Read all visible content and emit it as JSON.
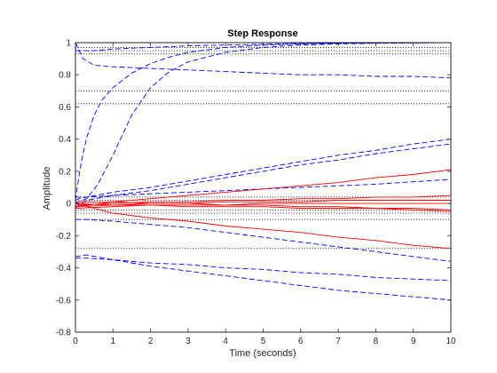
{
  "chart_data": {
    "type": "line",
    "title": "Step Response",
    "xlabel": "Time (seconds)",
    "ylabel": "Amplitude",
    "xlim": [
      0,
      10
    ],
    "ylim": [
      -0.8,
      1
    ],
    "xticks": [
      0,
      1,
      2,
      3,
      4,
      5,
      6,
      7,
      8,
      9,
      10
    ],
    "xtick_labels": [
      "0",
      "1",
      "2",
      "3",
      "4",
      "5",
      "6",
      "7",
      "8",
      "9",
      "10"
    ],
    "yticks": [
      -0.8,
      -0.6,
      -0.4,
      -0.2,
      0,
      0.2,
      0.4,
      0.6,
      0.8,
      1
    ],
    "ytick_labels": [
      "-0.8",
      "-0.6",
      "-0.4",
      "-0.2",
      "0",
      "0.2",
      "0.4",
      "0.6",
      "0.8",
      "1"
    ],
    "grid": false,
    "colors": {
      "blue_dashed": "#0000ff",
      "red_solid": "#ff0000",
      "reference_dotted": "#000000",
      "axes": "#262626"
    },
    "reference_lines_y": [
      1,
      0.97,
      0.95,
      0.93,
      0.7,
      0.62,
      0.04,
      0.02,
      -0.04,
      -0.06,
      -0.1,
      -0.28
    ],
    "series": [
      {
        "style": "blue-dashed",
        "x": [
          0,
          0.1,
          0.2,
          0.3,
          0.5,
          0.7,
          1,
          1.5,
          2,
          2.5,
          3,
          4,
          5,
          6,
          7,
          8,
          9,
          10
        ],
        "y": [
          0.02,
          0.18,
          0.31,
          0.41,
          0.55,
          0.64,
          0.72,
          0.81,
          0.87,
          0.91,
          0.94,
          0.97,
          0.985,
          0.992,
          0.996,
          0.998,
          0.999,
          1
        ]
      },
      {
        "style": "blue-dashed",
        "x": [
          0,
          0.3,
          0.6,
          1,
          1.5,
          2,
          2.5,
          3,
          4,
          5,
          6,
          7,
          8,
          9,
          10
        ],
        "y": [
          0,
          0.03,
          0.12,
          0.3,
          0.55,
          0.72,
          0.82,
          0.88,
          0.94,
          0.97,
          0.985,
          0.992,
          0.996,
          0.998,
          1
        ]
      },
      {
        "style": "blue-dashed",
        "x": [
          0,
          0.2,
          0.5,
          1,
          2,
          3,
          4,
          5,
          6,
          7,
          8,
          9,
          10
        ],
        "y": [
          1,
          0.9,
          0.86,
          0.85,
          0.84,
          0.83,
          0.82,
          0.81,
          0.8,
          0.8,
          0.79,
          0.79,
          0.78
        ]
      },
      {
        "style": "blue-dashed",
        "x": [
          0,
          0.5,
          1,
          2,
          3,
          4,
          5,
          6,
          7,
          8,
          9,
          10
        ],
        "y": [
          0.95,
          0.95,
          0.96,
          0.97,
          0.98,
          0.985,
          0.99,
          0.995,
          0.997,
          0.998,
          0.999,
          1
        ]
      },
      {
        "style": "blue-dashed",
        "x": [
          0,
          0.1,
          0.3,
          1,
          2,
          3,
          4,
          5,
          6,
          7,
          8,
          9,
          10
        ],
        "y": [
          0.02,
          0.03,
          0.04,
          0.07,
          0.1,
          0.14,
          0.18,
          0.22,
          0.26,
          0.3,
          0.33,
          0.37,
          0.4
        ]
      },
      {
        "style": "blue-dashed",
        "x": [
          0,
          0.1,
          0.3,
          1,
          2,
          3,
          4,
          5,
          6,
          7,
          8,
          9,
          10
        ],
        "y": [
          -0.03,
          -0.01,
          0.02,
          0.05,
          0.08,
          0.12,
          0.16,
          0.2,
          0.24,
          0.27,
          0.31,
          0.34,
          0.37
        ]
      },
      {
        "style": "blue-dashed",
        "x": [
          0,
          0.3,
          1,
          2,
          3,
          4,
          5,
          6,
          7,
          8,
          9,
          10
        ],
        "y": [
          0.04,
          0.04,
          0.05,
          0.06,
          0.07,
          0.08,
          0.09,
          0.1,
          0.11,
          0.12,
          0.135,
          0.15
        ]
      },
      {
        "style": "blue-dashed",
        "x": [
          0,
          0.3,
          1,
          2,
          3,
          4,
          5,
          6,
          7,
          8,
          9,
          10
        ],
        "y": [
          -0.1,
          -0.1,
          -0.11,
          -0.13,
          -0.15,
          -0.18,
          -0.21,
          -0.24,
          -0.27,
          -0.3,
          -0.33,
          -0.36
        ]
      },
      {
        "style": "blue-dashed",
        "x": [
          0,
          0.3,
          1,
          2,
          3,
          4,
          5,
          6,
          7,
          8,
          9,
          10
        ],
        "y": [
          -0.34,
          -0.34,
          -0.35,
          -0.37,
          -0.38,
          -0.4,
          -0.41,
          -0.43,
          -0.44,
          -0.46,
          -0.47,
          -0.48
        ]
      },
      {
        "style": "blue-dashed",
        "x": [
          0,
          0.3,
          1,
          2,
          3,
          4,
          5,
          6,
          7,
          8,
          9,
          10
        ],
        "y": [
          -0.33,
          -0.32,
          -0.35,
          -0.39,
          -0.42,
          -0.45,
          -0.48,
          -0.51,
          -0.54,
          -0.56,
          -0.58,
          -0.6
        ]
      },
      {
        "style": "red-solid",
        "x": [
          0,
          1,
          2,
          3,
          4,
          5,
          6,
          7,
          8,
          9,
          10
        ],
        "y": [
          -0.02,
          0.01,
          0.03,
          0.05,
          0.07,
          0.09,
          0.11,
          0.13,
          0.16,
          0.18,
          0.21
        ]
      },
      {
        "style": "red-solid",
        "x": [
          0,
          1,
          2,
          3,
          4,
          5,
          6,
          7,
          8,
          9,
          10
        ],
        "y": [
          0,
          -0.06,
          -0.09,
          -0.11,
          -0.14,
          -0.16,
          -0.18,
          -0.21,
          -0.23,
          -0.26,
          -0.28
        ]
      },
      {
        "style": "red-solid",
        "x": [
          0,
          1,
          2,
          3,
          4,
          5,
          6,
          7,
          8,
          9,
          10
        ],
        "y": [
          -0.01,
          0.0,
          0.01,
          0.01,
          0.02,
          0.02,
          0.03,
          0.03,
          0.04,
          0.04,
          0.05
        ]
      },
      {
        "style": "red-solid",
        "x": [
          0,
          1,
          2,
          3,
          4,
          5,
          6,
          7,
          8,
          9,
          10
        ],
        "y": [
          0.01,
          0.01,
          0.0,
          0.0,
          -0.01,
          -0.01,
          -0.02,
          -0.02,
          -0.03,
          -0.03,
          -0.04
        ]
      },
      {
        "style": "red-solid",
        "x": [
          0,
          1,
          2,
          3,
          4,
          5,
          6,
          7,
          8,
          9,
          10
        ],
        "y": [
          -0.02,
          -0.01,
          0.0,
          0.0,
          0.01,
          0.01,
          0.01,
          0.02,
          0.02,
          0.02,
          0.02
        ]
      },
      {
        "style": "red-solid",
        "x": [
          0,
          1,
          2,
          3,
          4,
          5,
          6,
          7,
          8,
          9,
          10
        ],
        "y": [
          0.0,
          -0.01,
          -0.01,
          -0.02,
          -0.02,
          -0.02,
          -0.03,
          -0.03,
          -0.03,
          -0.04,
          -0.05
        ]
      },
      {
        "style": "red-solid",
        "x": [
          0,
          1,
          2,
          3,
          4,
          5,
          6,
          7,
          8,
          9,
          10
        ],
        "y": [
          -0.03,
          -0.02,
          -0.01,
          -0.01,
          -0.01,
          0.0,
          0.0,
          0.0,
          0.0,
          0.0,
          0.0
        ]
      }
    ]
  }
}
